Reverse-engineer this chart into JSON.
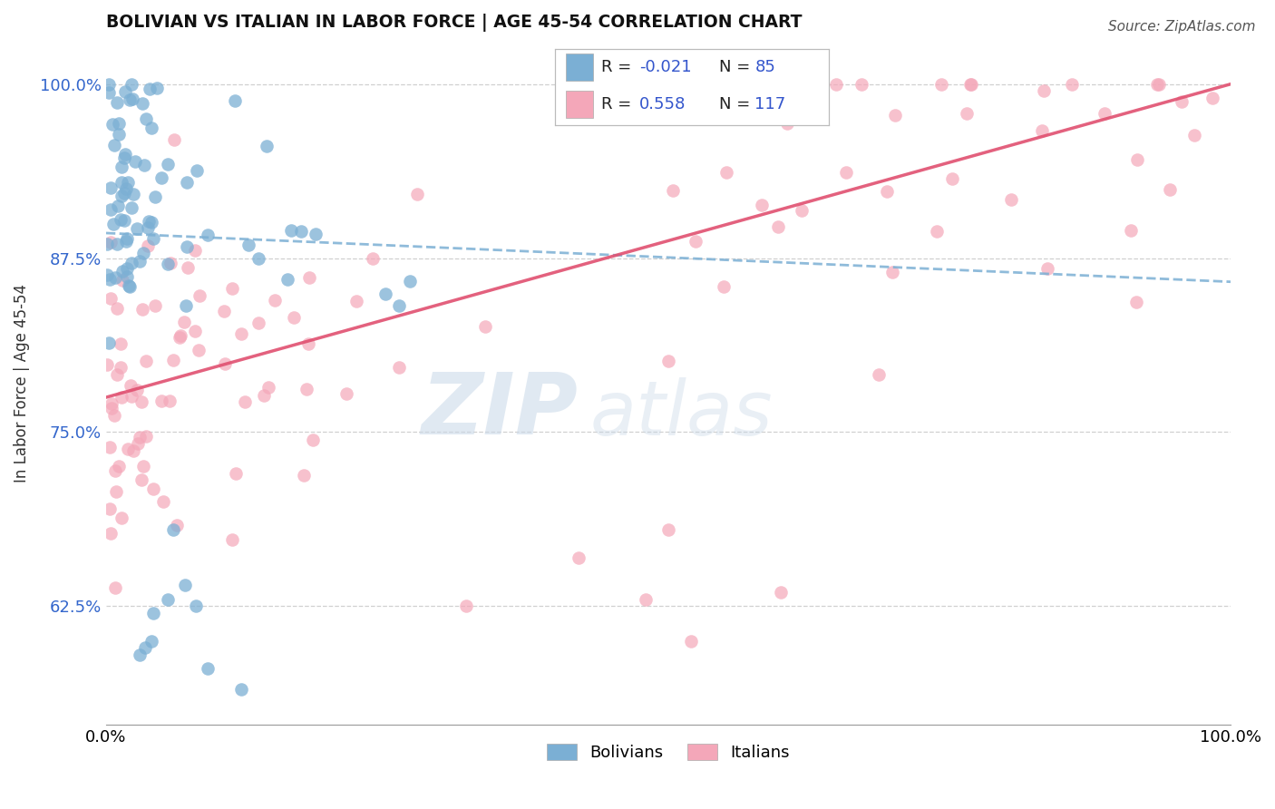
{
  "title": "BOLIVIAN VS ITALIAN IN LABOR FORCE | AGE 45-54 CORRELATION CHART",
  "source": "Source: ZipAtlas.com",
  "ylabel": "In Labor Force | Age 45-54",
  "xlim": [
    0.0,
    1.0
  ],
  "ylim": [
    0.54,
    1.03
  ],
  "yticks": [
    0.625,
    0.75,
    0.875,
    1.0
  ],
  "ytick_labels": [
    "62.5%",
    "75.0%",
    "87.5%",
    "100.0%"
  ],
  "xticks": [
    0.0,
    1.0
  ],
  "xtick_labels": [
    "0.0%",
    "100.0%"
  ],
  "bolivian_color": "#7bafd4",
  "italian_color": "#f4a7b9",
  "bolivian_R": -0.021,
  "bolivian_N": 85,
  "italian_R": 0.558,
  "italian_N": 117,
  "bolivian_line_start_y": 0.893,
  "bolivian_line_end_y": 0.858,
  "italian_line_start_y": 0.775,
  "italian_line_end_y": 1.0,
  "watermark_zip_color": "#c8d8e8",
  "watermark_atlas_color": "#c8d8e8",
  "background_color": "#ffffff",
  "grid_color": "#d0d0d0"
}
